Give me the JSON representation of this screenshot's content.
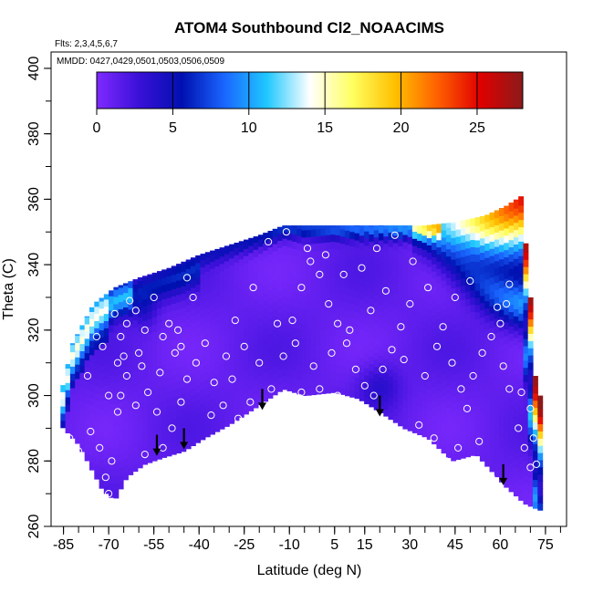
{
  "chart_data": {
    "type": "heatmap",
    "title": "ATOM4 Southbound Cl2_NOAACIMS",
    "flights_note": "Flts: 2,3,4,5,6,7",
    "dates_note": "MMDD: 0427,0429,0501,0503,0506,0509",
    "xlabel": "Latitude (deg N)",
    "ylabel": "Theta (C)",
    "xlim": [
      -87,
      82
    ],
    "ylim": [
      260,
      405
    ],
    "x_ticks": [
      -85,
      -70,
      -55,
      -40,
      -25,
      -10,
      5,
      15,
      30,
      45,
      60,
      75
    ],
    "x_tick_labels": [
      "-85",
      "-70",
      "-55",
      "-40",
      "-25",
      "-10",
      "5",
      "15",
      "30",
      "45",
      "60",
      "75"
    ],
    "y_ticks": [
      260,
      280,
      300,
      320,
      340,
      360,
      380,
      400
    ],
    "y_tick_labels": [
      "260",
      "280",
      "300",
      "320",
      "340",
      "360",
      "380",
      "400"
    ],
    "colorbar": {
      "range": [
        0,
        28
      ],
      "ticks": [
        0,
        5,
        10,
        15,
        20,
        25
      ],
      "tick_labels": [
        "0",
        "5",
        "10",
        "15",
        "20",
        "25"
      ],
      "colors": [
        "#7f2aff",
        "#3a10d8",
        "#0010b0",
        "#1a66ff",
        "#20c8ff",
        "#ffffff",
        "#ffff60",
        "#ffc000",
        "#ff6000",
        "#e00000",
        "#8b1a1a"
      ]
    },
    "field": {
      "lat_range": [
        -86,
        73
      ],
      "theta_floor": [
        [
          -86,
          291
        ],
        [
          -80,
          285
        ],
        [
          -72,
          271
        ],
        [
          -68,
          268
        ],
        [
          -64,
          275
        ],
        [
          -58,
          279
        ],
        [
          -52,
          281
        ],
        [
          -45,
          283
        ],
        [
          -38,
          287
        ],
        [
          -30,
          291
        ],
        [
          -20,
          297
        ],
        [
          -12,
          302
        ],
        [
          -5,
          300
        ],
        [
          5,
          301
        ],
        [
          13,
          299
        ],
        [
          20,
          295
        ],
        [
          28,
          290
        ],
        [
          36,
          287
        ],
        [
          44,
          280
        ],
        [
          52,
          282
        ],
        [
          58,
          276
        ],
        [
          62,
          272
        ],
        [
          68,
          267
        ],
        [
          73,
          265
        ]
      ],
      "theta_ceiling": [
        [
          -86,
          300
        ],
        [
          -82,
          316
        ],
        [
          -75,
          328
        ],
        [
          -68,
          333
        ],
        [
          -60,
          336
        ],
        [
          -50,
          339
        ],
        [
          -40,
          343
        ],
        [
          -30,
          346
        ],
        [
          -20,
          349
        ],
        [
          -12,
          352
        ],
        [
          -5,
          352
        ],
        [
          5,
          352
        ],
        [
          15,
          352
        ],
        [
          25,
          352
        ],
        [
          35,
          352
        ],
        [
          45,
          353
        ],
        [
          55,
          355
        ],
        [
          62,
          358
        ],
        [
          67,
          361
        ],
        [
          70,
          330
        ],
        [
          72,
          300
        ]
      ],
      "high_value_corner": "upper-right",
      "peak_value": 28
    },
    "sample_points": [
      [
        -83,
        287
      ],
      [
        -80,
        283
      ],
      [
        -76,
        289
      ],
      [
        -73,
        284
      ],
      [
        -71,
        275
      ],
      [
        -70,
        270
      ],
      [
        -69,
        280
      ],
      [
        -67,
        295
      ],
      [
        -66,
        300
      ],
      [
        -64,
        306
      ],
      [
        -61,
        297
      ],
      [
        -58,
        282
      ],
      [
        -55,
        278
      ],
      [
        -52,
        284
      ],
      [
        -49,
        290
      ],
      [
        -46,
        298
      ],
      [
        -44,
        305
      ],
      [
        -41,
        310
      ],
      [
        -38,
        316
      ],
      [
        -70,
        300
      ],
      [
        -67,
        310
      ],
      [
        -64,
        322
      ],
      [
        -61,
        326
      ],
      [
        -58,
        320
      ],
      [
        -55,
        330
      ],
      [
        -52,
        318
      ],
      [
        -50,
        322
      ],
      [
        -48,
        313
      ],
      [
        -46,
        315
      ],
      [
        -44,
        336
      ],
      [
        -72,
        315
      ],
      [
        -68,
        325
      ],
      [
        -66,
        318
      ],
      [
        -63,
        329
      ],
      [
        -60,
        313
      ],
      [
        -57,
        301
      ],
      [
        -54,
        295
      ],
      [
        -35,
        304
      ],
      [
        -31,
        312
      ],
      [
        -28,
        323
      ],
      [
        -25,
        315
      ],
      [
        -22,
        333
      ],
      [
        -36,
        294
      ],
      [
        -32,
        297
      ],
      [
        -27,
        293
      ],
      [
        -23,
        298
      ],
      [
        -16,
        302
      ],
      [
        -12,
        312
      ],
      [
        -9,
        323
      ],
      [
        -6,
        333
      ],
      [
        -3,
        341
      ],
      [
        0,
        337
      ],
      [
        3,
        328
      ],
      [
        6,
        322
      ],
      [
        9,
        316
      ],
      [
        12,
        308
      ],
      [
        15,
        303
      ],
      [
        18,
        300
      ],
      [
        21,
        308
      ],
      [
        24,
        314
      ],
      [
        27,
        321
      ],
      [
        30,
        328
      ],
      [
        -17,
        347
      ],
      [
        -11,
        350
      ],
      [
        -4,
        345
      ],
      [
        2,
        343
      ],
      [
        8,
        337
      ],
      [
        14,
        339
      ],
      [
        19,
        345
      ],
      [
        25,
        349
      ],
      [
        31,
        341
      ],
      [
        36,
        333
      ],
      [
        41,
        321
      ],
      [
        44,
        310
      ],
      [
        47,
        302
      ],
      [
        49,
        296
      ],
      [
        51,
        306
      ],
      [
        54,
        313
      ],
      [
        57,
        318
      ],
      [
        60,
        322
      ],
      [
        62,
        328
      ],
      [
        63,
        334
      ],
      [
        59,
        327
      ],
      [
        -6,
        301
      ],
      [
        0,
        302
      ],
      [
        6,
        300
      ],
      [
        12,
        297
      ],
      [
        33,
        291
      ],
      [
        38,
        287
      ],
      [
        42,
        280
      ],
      [
        46,
        284
      ],
      [
        53,
        286
      ],
      [
        57,
        275
      ],
      [
        63,
        302
      ],
      [
        67,
        301
      ],
      [
        70,
        296
      ],
      [
        71,
        287
      ],
      [
        72,
        279
      ],
      [
        70,
        278
      ],
      [
        68,
        284
      ],
      [
        66,
        290
      ],
      [
        61,
        309
      ],
      [
        -74,
        318
      ],
      [
        -77,
        306
      ],
      [
        -65,
        312
      ],
      [
        -59,
        309
      ],
      [
        -53,
        307
      ],
      [
        -47,
        320
      ],
      [
        -42,
        330
      ],
      [
        -29,
        305
      ],
      [
        -20,
        310
      ],
      [
        -14,
        322
      ],
      [
        -8,
        316
      ],
      [
        -2,
        309
      ],
      [
        4,
        313
      ],
      [
        10,
        320
      ],
      [
        17,
        326
      ],
      [
        22,
        332
      ],
      [
        28,
        311
      ],
      [
        35,
        306
      ],
      [
        39,
        315
      ],
      [
        45,
        330
      ],
      [
        50,
        335
      ]
    ],
    "arrows": [
      [
        -54,
        288
      ],
      [
        -45,
        290
      ],
      [
        -19,
        302
      ],
      [
        20,
        300
      ],
      [
        61,
        279
      ]
    ]
  }
}
